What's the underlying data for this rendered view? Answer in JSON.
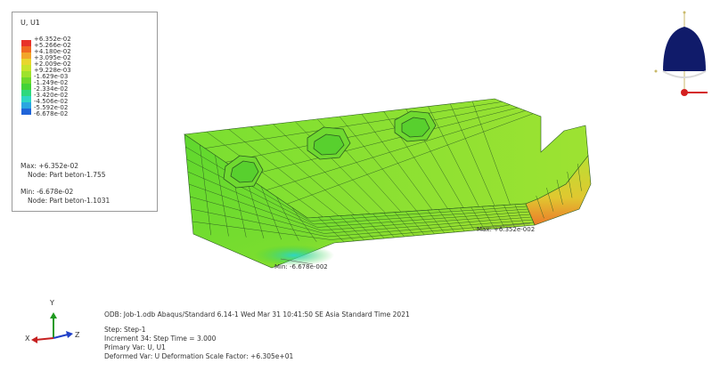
{
  "legend": {
    "title": "U, U1",
    "levels": [
      "+6.352e-02",
      "+5.266e-02",
      "+4.180e-02",
      "+3.095e-02",
      "+2.009e-02",
      "+9.228e-03",
      "-1.629e-03",
      "-1.249e-02",
      "-2.334e-02",
      "-3.420e-02",
      "-4.506e-02",
      "-5.592e-02",
      "-6.678e-02"
    ],
    "colors": [
      "#e8322a",
      "#f06a22",
      "#f2a52a",
      "#e8d62e",
      "#c8e42c",
      "#9ee22c",
      "#6ed82c",
      "#43d337",
      "#2fd87e",
      "#2fd6c4",
      "#2ba6e0",
      "#2064d8"
    ],
    "max_label": "Max: +6.352e-02",
    "max_node": "Node: Part beton-1.755",
    "min_label": "Min: -6.678e-02",
    "min_node": "Node: Part beton-1.1031"
  },
  "model": {
    "max_annotation": "Max: +6.352e-002",
    "min_annotation": "Min: -6.678e-002"
  },
  "info": {
    "odb_line": "ODB: Job-1.odb    Abaqus/Standard 6.14-1    Wed Mar 31 10:41:50 SE Asia Standard Time 2021",
    "step_line": "Step: Step-1",
    "increment_line": "Increment     34: Step Time =     3.000",
    "primary_line": "Primary Var: U, U1",
    "deformed_line": "Deformed Var: U   Deformation Scale Factor: +6.305e+01"
  },
  "triad": {
    "x": "X",
    "y": "Y",
    "z": "Z"
  }
}
